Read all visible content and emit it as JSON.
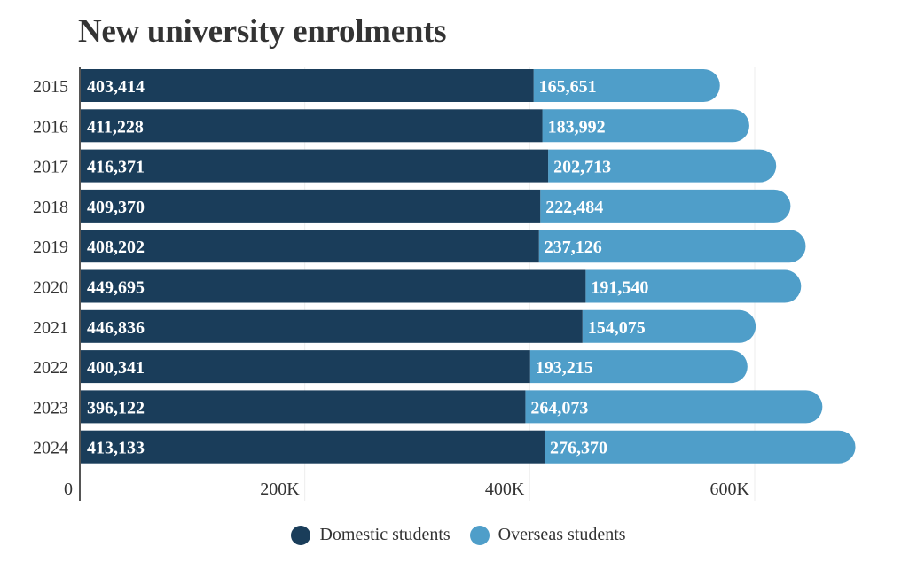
{
  "title": "New university enrolments",
  "colors": {
    "domestic": "#1a3d5a",
    "overseas": "#4f9ec9",
    "axis": "#555555",
    "grid": "#eeeeee",
    "text": "#333333"
  },
  "legend": [
    {
      "label": "Domestic students",
      "color": "#1a3d5a"
    },
    {
      "label": "Overseas students",
      "color": "#4f9ec9"
    }
  ],
  "chart_data": {
    "type": "bar",
    "orientation": "horizontal",
    "stacked": true,
    "title": "New university enrolments",
    "xlabel": "",
    "ylabel": "",
    "categories": [
      "2015",
      "2016",
      "2017",
      "2018",
      "2019",
      "2020",
      "2021",
      "2022",
      "2023",
      "2024"
    ],
    "series": [
      {
        "name": "Domestic students",
        "values": [
          403414,
          411228,
          416371,
          409370,
          408202,
          449695,
          446836,
          400341,
          396122,
          413133
        ],
        "labels": [
          "403,414",
          "411,228",
          "416,371",
          "409,370",
          "408,202",
          "449,695",
          "446,836",
          "400,341",
          "396,122",
          "413,133"
        ]
      },
      {
        "name": "Overseas students",
        "values": [
          165651,
          183992,
          202713,
          222484,
          237126,
          191540,
          154075,
          193215,
          264073,
          276370
        ],
        "labels": [
          "165,651",
          "183,992",
          "202,713",
          "222,484",
          "237,126",
          "191,540",
          "154,075",
          "193,215",
          "264,073",
          "276,370"
        ]
      }
    ],
    "xlim": [
      0,
      700000
    ],
    "xticks": [
      0,
      200000,
      400000,
      600000
    ],
    "xtick_labels": [
      "0",
      "200K",
      "400K",
      "600K"
    ],
    "grid": true,
    "legend_position": "bottom-center"
  }
}
